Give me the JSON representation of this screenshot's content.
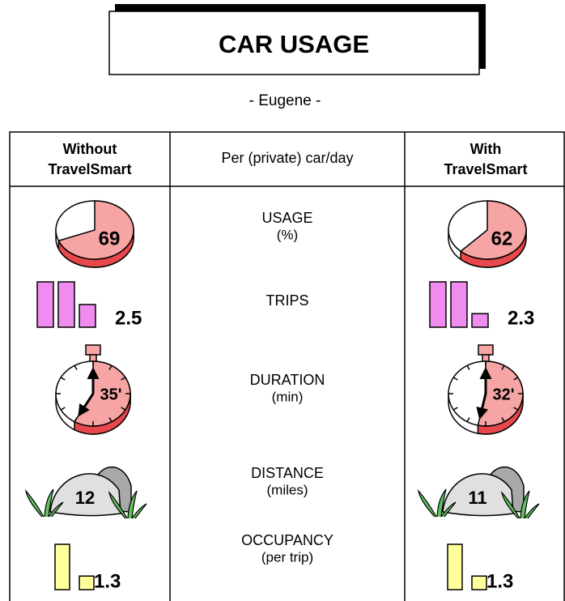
{
  "title": "CAR USAGE",
  "subtitle": "- Eugene -",
  "header": {
    "left": [
      "Without",
      "TravelSmart"
    ],
    "middle": "Per (private) car/day",
    "right": [
      "With",
      "TravelSmart"
    ]
  },
  "rows": [
    {
      "label": "USAGE",
      "unit": "(%)",
      "without": 69,
      "with": 62
    },
    {
      "label": "TRIPS",
      "without": 2.5,
      "with": 2.3
    },
    {
      "label": "DURATION",
      "unit": "(min)",
      "without": 35,
      "with": 32,
      "without_label": "35'",
      "with_label": "32'"
    },
    {
      "label": "DISTANCE",
      "unit": "(miles)",
      "without": 12,
      "with": 11
    },
    {
      "label": "OCCUPANCY",
      "unit": "(per trip)",
      "without": 1.3,
      "with": 1.3
    }
  ]
}
